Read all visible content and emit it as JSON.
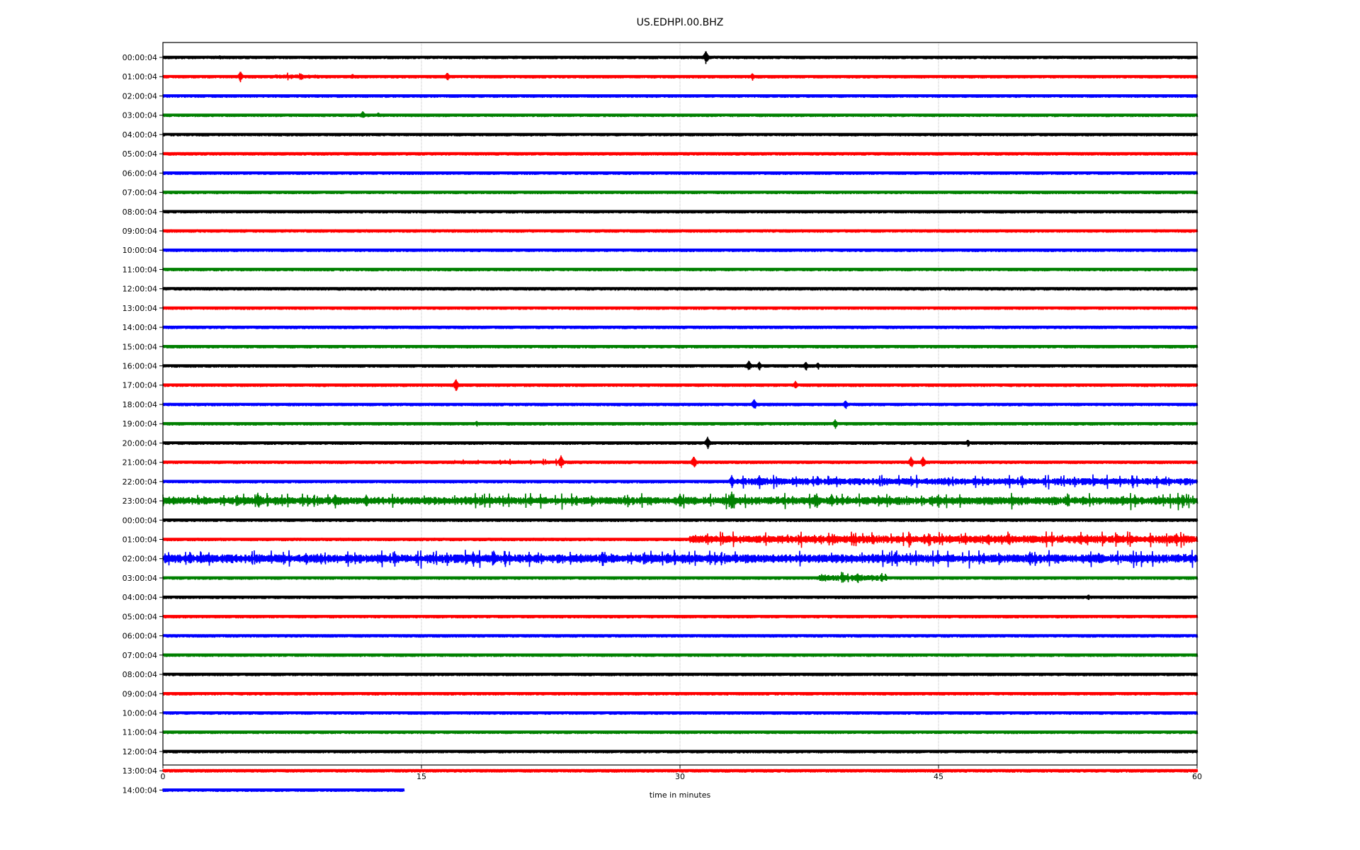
{
  "chart_data": {
    "type": "line",
    "title": "US.EDHPI.00.BHZ",
    "xlabel": "time in minutes",
    "ylabel": "",
    "xlim": [
      0,
      60
    ],
    "xticks": [
      "0",
      "15",
      "30",
      "45",
      "60"
    ],
    "xtick_values": [
      0,
      15,
      30,
      45,
      60
    ],
    "grid": "vertical dotted at x ticks",
    "colors": [
      "#000000",
      "#ff0000",
      "#0000ff",
      "#008000"
    ],
    "row_labels": [
      "00:00:04",
      "01:00:04",
      "02:00:04",
      "03:00:04",
      "04:00:04",
      "05:00:04",
      "06:00:04",
      "07:00:04",
      "08:00:04",
      "09:00:04",
      "10:00:04",
      "11:00:04",
      "12:00:04",
      "13:00:04",
      "14:00:04",
      "15:00:04",
      "16:00:04",
      "17:00:04",
      "18:00:04",
      "19:00:04",
      "20:00:04",
      "21:00:04",
      "22:00:04",
      "23:00:04",
      "00:00:04",
      "01:00:04",
      "02:00:04",
      "03:00:04",
      "04:00:04",
      "05:00:04",
      "06:00:04",
      "07:00:04",
      "08:00:04",
      "09:00:04",
      "10:00:04",
      "11:00:04",
      "12:00:04",
      "13:00:04",
      "14:00:04"
    ],
    "last_row_end_minute": 14.0,
    "events": [
      [
        0,
        31.5,
        10
      ],
      [
        0,
        3.3,
        3
      ],
      [
        1,
        4.5,
        8
      ],
      [
        1,
        8.0,
        3
      ],
      [
        1,
        11.0,
        4
      ],
      [
        1,
        16.5,
        6
      ],
      [
        1,
        34.2,
        5
      ],
      [
        3,
        11.6,
        6
      ],
      [
        3,
        12.5,
        4
      ],
      [
        16,
        34.0,
        8
      ],
      [
        16,
        34.6,
        6
      ],
      [
        16,
        37.3,
        6
      ],
      [
        16,
        38.0,
        5
      ],
      [
        17,
        17.0,
        9
      ],
      [
        17,
        36.7,
        6
      ],
      [
        18,
        34.3,
        8
      ],
      [
        18,
        39.6,
        6
      ],
      [
        19,
        18.2,
        4
      ],
      [
        19,
        39.0,
        6
      ],
      [
        20,
        31.6,
        9
      ],
      [
        20,
        46.7,
        5
      ],
      [
        21,
        23.1,
        10
      ],
      [
        21,
        30.8,
        9
      ],
      [
        21,
        43.4,
        8
      ],
      [
        21,
        44.1,
        8
      ],
      [
        22,
        33.0,
        9
      ],
      [
        22,
        34.6,
        9
      ],
      [
        22,
        38.0,
        7
      ],
      [
        23,
        5.5,
        12
      ],
      [
        23,
        10.0,
        10
      ],
      [
        23,
        11.8,
        9
      ],
      [
        23,
        30.0,
        10
      ],
      [
        23,
        33.0,
        13
      ],
      [
        23,
        38.8,
        10
      ],
      [
        23,
        53.4,
        7
      ],
      [
        25,
        31.5,
        7
      ],
      [
        25,
        41.2,
        7
      ],
      [
        25,
        47.9,
        8
      ],
      [
        25,
        58.8,
        9
      ],
      [
        26,
        8.3,
        8
      ],
      [
        26,
        18.0,
        10
      ],
      [
        26,
        19.2,
        12
      ],
      [
        26,
        25.5,
        11
      ],
      [
        26,
        42.5,
        10
      ],
      [
        26,
        50.3,
        10
      ],
      [
        26,
        54.3,
        9
      ],
      [
        27,
        40.3,
        7
      ],
      [
        28,
        53.7,
        4
      ]
    ],
    "noisy_segments": [
      [
        1,
        6.5,
        9.0,
        2.5
      ],
      [
        21,
        16.5,
        23.0,
        2
      ],
      [
        22,
        33.0,
        60.0,
        4
      ],
      [
        23,
        0,
        60,
        4.5
      ],
      [
        25,
        30.5,
        60,
        4.5
      ],
      [
        26,
        0,
        60,
        5
      ],
      [
        27,
        38,
        42,
        3.5
      ]
    ]
  }
}
